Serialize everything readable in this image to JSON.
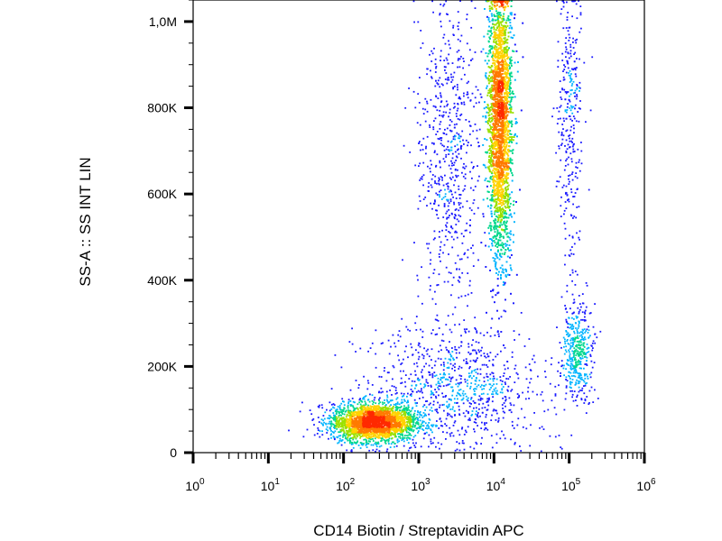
{
  "chart_data": {
    "type": "scatter",
    "subtype": "flow-cytometry density dot plot",
    "xlabel": "CD14 Biotin / Streptavidin APC",
    "ylabel": "SS-A :: SS INT LIN",
    "x_scale": "log",
    "xlim": [
      1,
      1000000
    ],
    "ylim": [
      0,
      1050000
    ],
    "x_ticks": [
      {
        "value": 1,
        "base": "10",
        "exp": "0"
      },
      {
        "value": 10,
        "base": "10",
        "exp": "1"
      },
      {
        "value": 100,
        "base": "10",
        "exp": "2"
      },
      {
        "value": 1000,
        "base": "10",
        "exp": "3"
      },
      {
        "value": 10000,
        "base": "10",
        "exp": "4"
      },
      {
        "value": 100000,
        "base": "10",
        "exp": "5"
      },
      {
        "value": 1000000,
        "base": "10",
        "exp": "6"
      }
    ],
    "y_ticks": [
      {
        "value": 0,
        "label": "0"
      },
      {
        "value": 200000,
        "label": "200K"
      },
      {
        "value": 400000,
        "label": "400K"
      },
      {
        "value": 600000,
        "label": "600K"
      },
      {
        "value": 800000,
        "label": "800K"
      },
      {
        "value": 1000000,
        "label": "1,0M"
      }
    ],
    "grid": false,
    "color_scale": [
      "#1a1aff",
      "#00b4ff",
      "#00d88c",
      "#9be000",
      "#ffd200",
      "#ff7a00",
      "#ff2a00"
    ],
    "populations": [
      {
        "center_x": 250,
        "center_y": 70000,
        "spread_log_x": 0.28,
        "spread_y": 22000,
        "events": 2600
      },
      {
        "center_x": 12000,
        "center_y": 780000,
        "spread_log_x": 0.08,
        "spread_y": 170000,
        "events": 5200
      },
      {
        "center_x": 130000,
        "center_y": 240000,
        "spread_log_x": 0.1,
        "spread_y": 55000,
        "events": 420
      },
      {
        "center_x": 3000,
        "center_y": 150000,
        "spread_log_x": 0.6,
        "spread_y": 70000,
        "events": 900
      },
      {
        "center_x": 2500,
        "center_y": 700000,
        "spread_log_x": 0.22,
        "spread_y": 190000,
        "events": 650
      },
      {
        "center_x": 100000,
        "center_y": 780000,
        "spread_log_x": 0.08,
        "spread_y": 170000,
        "events": 330
      }
    ]
  }
}
